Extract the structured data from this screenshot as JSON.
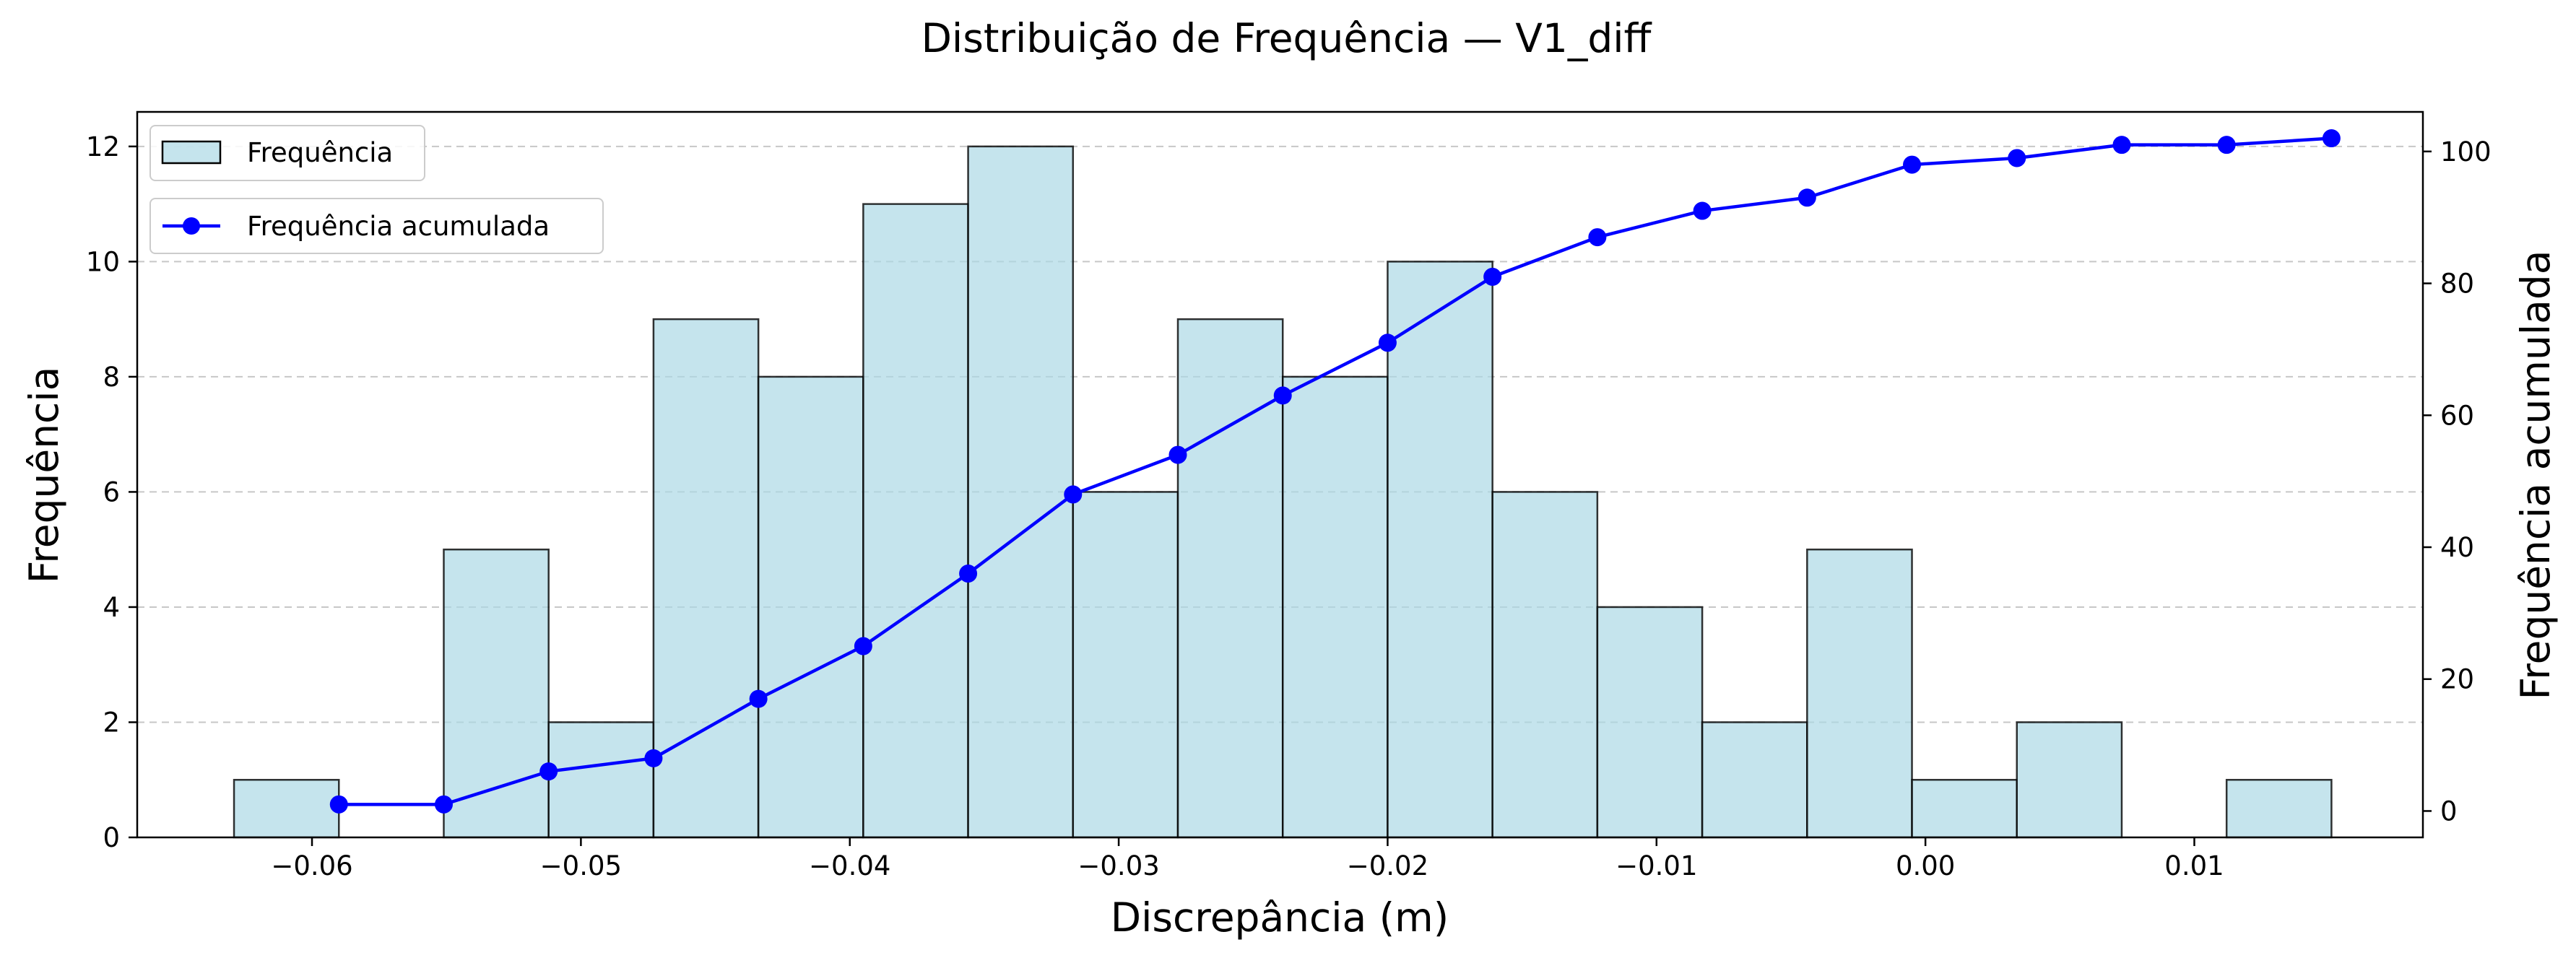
{
  "chart_data": {
    "type": "bar",
    "title": "Distribuição de Frequência — V1_diff",
    "xlabel": "Discrepância (m)",
    "ylabel": "Frequência",
    "y2label": "Frequência acumulada",
    "xlim": [
      -0.0665,
      0.0185
    ],
    "ylim": [
      0,
      12.6
    ],
    "y2lim": [
      -4,
      106
    ],
    "x_ticks": [
      -0.06,
      -0.05,
      -0.04,
      -0.03,
      -0.02,
      -0.01,
      0.0,
      0.01
    ],
    "x_tick_labels": [
      "−0.06",
      "−0.05",
      "−0.04",
      "−0.03",
      "−0.02",
      "−0.01",
      "0.00",
      "0.01"
    ],
    "y_ticks": [
      0,
      2,
      4,
      6,
      8,
      10,
      12
    ],
    "y2_ticks": [
      0,
      20,
      40,
      60,
      80,
      100
    ],
    "grid": "horizontal dashed",
    "bins": {
      "edges": [
        -0.0629,
        -0.059,
        -0.0551,
        -0.0512,
        -0.0473,
        -0.0434,
        -0.0395,
        -0.0356,
        -0.0317,
        -0.0278,
        -0.0239,
        -0.02,
        -0.0161,
        -0.0122,
        -0.0083,
        -0.0044,
        -0.0005,
        0.0034,
        0.0073,
        0.0112,
        0.0151
      ],
      "counts": [
        1,
        0,
        5,
        2,
        9,
        8,
        11,
        12,
        6,
        9,
        8,
        10,
        6,
        4,
        2,
        5,
        1,
        2,
        0,
        1
      ]
    },
    "series": [
      {
        "name": "Frequência",
        "kind": "histogram",
        "color": "#add8e6",
        "edgecolor": "#000000"
      },
      {
        "name": "Frequência acumulada",
        "kind": "line",
        "axis": "secondary",
        "color": "#0000ff",
        "x": [
          -0.059,
          -0.0551,
          -0.0512,
          -0.0473,
          -0.0434,
          -0.0395,
          -0.0356,
          -0.0317,
          -0.0278,
          -0.0239,
          -0.02,
          -0.0161,
          -0.0122,
          -0.0083,
          -0.0044,
          -0.0005,
          0.0034,
          0.0073,
          0.0112,
          0.0151
        ],
        "values": [
          1,
          1,
          6,
          8,
          17,
          25,
          36,
          48,
          54,
          63,
          71,
          81,
          87,
          91,
          93,
          98,
          99,
          101,
          101,
          102
        ]
      }
    ],
    "legend": [
      "upper-left",
      "upper-left (below)"
    ]
  }
}
